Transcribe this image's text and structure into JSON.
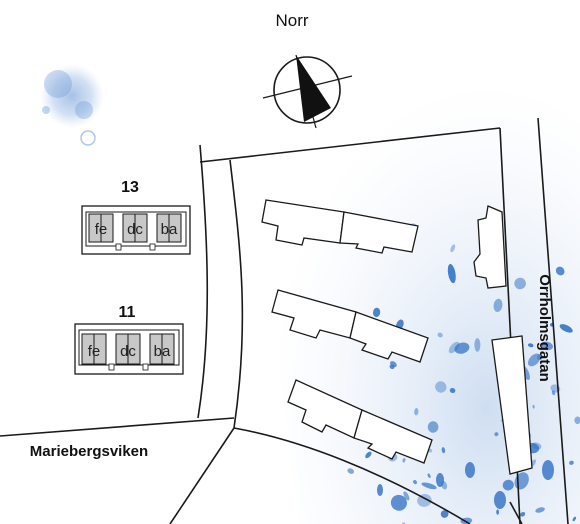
{
  "compass": {
    "label": "Norr"
  },
  "streets": {
    "east": "Orrholmsgatan",
    "west": "Mariebergsviken"
  },
  "buildings": [
    {
      "number": "13",
      "units": [
        "fe",
        "dc",
        "ba"
      ]
    },
    {
      "number": "11",
      "units": [
        "fe",
        "dc",
        "ba"
      ]
    }
  ],
  "colors": {
    "line": "#1a1a1a",
    "unit_fill": "#c8c8c8",
    "water_blue": "#2f6fc4",
    "water_light": "#dbe7f5"
  }
}
